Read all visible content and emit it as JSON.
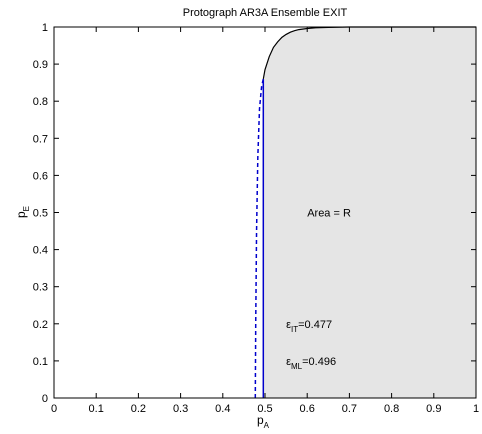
{
  "chart_data": {
    "type": "line",
    "title": "Protograph AR3A Ensemble EXIT",
    "xlabel": {
      "main": "p",
      "sub": "A"
    },
    "ylabel": {
      "main": "p",
      "sub": "E"
    },
    "xlim": [
      0,
      1
    ],
    "ylim": [
      0,
      1
    ],
    "x_ticks": [
      "0",
      "0.1",
      "0.2",
      "0.3",
      "0.4",
      "0.5",
      "0.6",
      "0.7",
      "0.8",
      "0.9",
      "1"
    ],
    "y_ticks": [
      "0",
      "0.1",
      "0.2",
      "0.3",
      "0.4",
      "0.5",
      "0.6",
      "0.7",
      "0.8",
      "0.9",
      "1"
    ],
    "grid": false,
    "colors": {
      "shaded_region": "#e5e5e5",
      "exit_curve": "#000000",
      "threshold_lines": "#0000cc"
    },
    "series": [
      {
        "style": "solid-black",
        "x": [
          0.496,
          0.5,
          0.51,
          0.52,
          0.53,
          0.54,
          0.55,
          0.56,
          0.57,
          0.58,
          0.6,
          0.62,
          0.65,
          0.7,
          0.8,
          0.9,
          1.0
        ],
        "y": [
          0.86,
          0.885,
          0.92,
          0.945,
          0.96,
          0.972,
          0.98,
          0.986,
          0.99,
          0.993,
          0.996,
          0.998,
          0.999,
          1.0,
          1.0,
          1.0,
          1.0
        ]
      },
      {
        "style": "solid-blue-vertical",
        "x": [
          0.496,
          0.496
        ],
        "y": [
          0,
          0.86
        ]
      },
      {
        "style": "dashed-blue",
        "x": [
          0.477,
          0.478,
          0.48,
          0.483,
          0.487,
          0.492,
          0.496
        ],
        "y": [
          0,
          0.2,
          0.45,
          0.65,
          0.78,
          0.84,
          0.86
        ]
      }
    ],
    "annotations": [
      {
        "text": "Area = R",
        "x": 0.6,
        "y": 0.5
      },
      {
        "main": "ε",
        "sub": "IT",
        "value": "=0.477",
        "x": 0.55,
        "y": 0.2
      },
      {
        "main": "ε",
        "sub": "ML",
        "value": "=0.496",
        "x": 0.55,
        "y": 0.1
      }
    ]
  }
}
